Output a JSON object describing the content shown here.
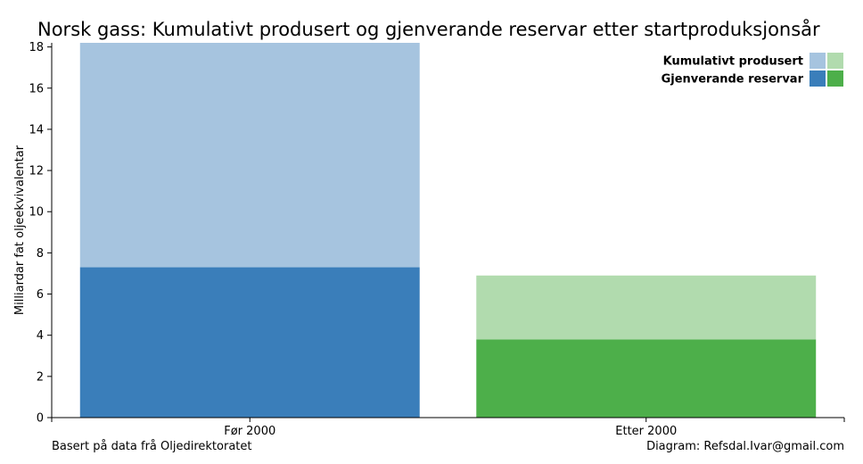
{
  "chart_data": {
    "type": "bar",
    "stacked": true,
    "title": "Norsk gass: Kumulativt produsert og gjenverande reservar etter startproduksjonsår",
    "ylabel": "Milliardar fat oljeekvivalentar",
    "xlabel": "",
    "categories": [
      "Før 2000",
      "Etter 2000"
    ],
    "ylim": [
      0,
      18.2
    ],
    "yticks": [
      0,
      2,
      4,
      6,
      8,
      10,
      12,
      14,
      16,
      18
    ],
    "grid": false,
    "legend_position": "top-right",
    "series": [
      {
        "name": "Gjenverande reservar",
        "values": [
          7.3,
          3.8
        ],
        "colors": [
          "#3a7eba",
          "#4daf4a"
        ]
      },
      {
        "name": "Kumulativt produsert",
        "values": [
          10.9,
          3.1
        ],
        "colors": [
          "#a6c4df",
          "#b1dbae"
        ]
      }
    ],
    "legend": [
      {
        "label": "Kumulativt produsert",
        "colors": [
          "#a6c4df",
          "#b1dbae"
        ]
      },
      {
        "label": "Gjenverande reservar",
        "colors": [
          "#3a7eba",
          "#4daf4a"
        ]
      }
    ]
  },
  "footnotes": {
    "left": "Basert på data frå Oljedirektoratet",
    "right": "Diagram: Refsdal.Ivar@gmail.com"
  }
}
